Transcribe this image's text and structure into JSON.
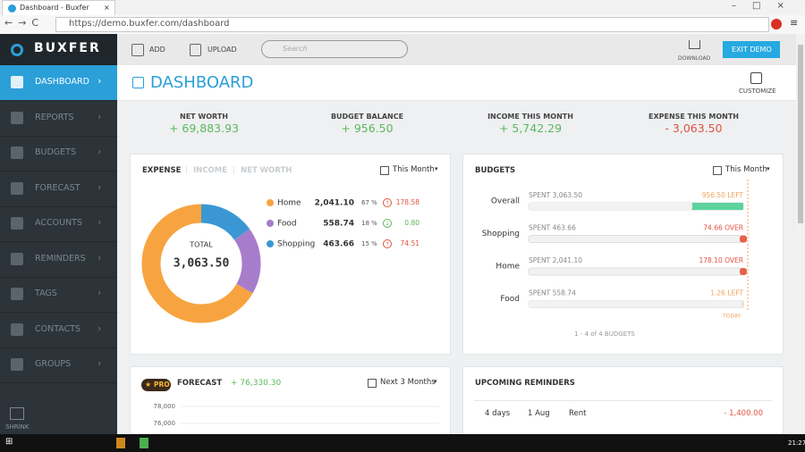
{
  "browser": {
    "tab_title": "Dashboard - Buxfer",
    "url": "https://demo.buxfer.com/dashboard"
  },
  "sidebar": {
    "brand": "BUXFER",
    "items": [
      "DASHBOARD",
      "REPORTS",
      "BUDGETS",
      "FORECAST",
      "ACCOUNTS",
      "REMINDERS",
      "TAGS",
      "CONTACTS",
      "GROUPS"
    ],
    "shrink": "SHRINK"
  },
  "toolbar": {
    "add": "ADD",
    "upload": "UPLOAD",
    "search_placeholder": "Search",
    "download": "DOWNLOAD",
    "exit_demo": "EXIT DEMO"
  },
  "header": {
    "title": "DASHBOARD",
    "customize": "CUSTOMIZE"
  },
  "stats": [
    {
      "label": "NET WORTH",
      "value": "+ 69,883.93"
    },
    {
      "label": "BUDGET BALANCE",
      "value": "+ 956.50"
    },
    {
      "label": "INCOME THIS MONTH",
      "value": "+ 5,742.29"
    },
    {
      "label": "EXPENSE THIS MONTH",
      "value": "- 3,063.50"
    }
  ],
  "expense": {
    "tabs": [
      "EXPENSE",
      "INCOME",
      "NET WORTH"
    ],
    "period": "This Month",
    "total_label": "TOTAL",
    "total": "3,063.50",
    "items": [
      {
        "name": "Home",
        "color": "#f7a440",
        "amount": 2041.1,
        "amount_label": "2,041.10",
        "share": "67 %",
        "change": "178.58",
        "trend": "up"
      },
      {
        "name": "Food",
        "color": "#a77dcb",
        "amount": 558.74,
        "amount_label": "558.74",
        "share": "18 %",
        "change": "0.80",
        "trend": "down"
      },
      {
        "name": "Shopping",
        "color": "#3b97d3",
        "amount": 463.66,
        "amount_label": "463.66",
        "share": "15 %",
        "change": "74.51",
        "trend": "up"
      }
    ]
  },
  "budgets": {
    "title": "BUDGETS",
    "period": "This Month",
    "rows": [
      {
        "name": "Overall",
        "spent": 3063.5,
        "spent_label": "SPENT 3,063.50",
        "balance": 956.5,
        "status": "956.50 LEFT",
        "over": false
      },
      {
        "name": "Shopping",
        "spent": 463.66,
        "spent_label": "SPENT 463.66",
        "balance": 74.66,
        "status": "74.66 OVER",
        "over": true
      },
      {
        "name": "Home",
        "spent": 2041.1,
        "spent_label": "SPENT 2,041.10",
        "balance": 178.1,
        "status": "178.10 OVER",
        "over": true
      },
      {
        "name": "Food",
        "spent": 558.74,
        "spent_label": "SPENT 558.74",
        "balance": 1.26,
        "status": "1.26 LEFT",
        "over": false
      }
    ],
    "today": "TODAY",
    "footer": "1 - 4 of 4 BUDGETS"
  },
  "forecast": {
    "badge": "PRO",
    "title": "FORECAST",
    "amount": "+ 76,330.30",
    "period": "Next 3 Months",
    "ylim": [
      66000,
      80000
    ],
    "yticks": [
      {
        "value": 78000,
        "label": "78,000"
      },
      {
        "value": 76000,
        "label": "76,000"
      }
    ]
  },
  "reminders": {
    "title": "UPCOMING REMINDERS",
    "rows": [
      [
        "4 days",
        "1 Aug",
        "Rent",
        "- 1,400.00"
      ]
    ]
  },
  "taskbar": {
    "time": "21:27"
  }
}
